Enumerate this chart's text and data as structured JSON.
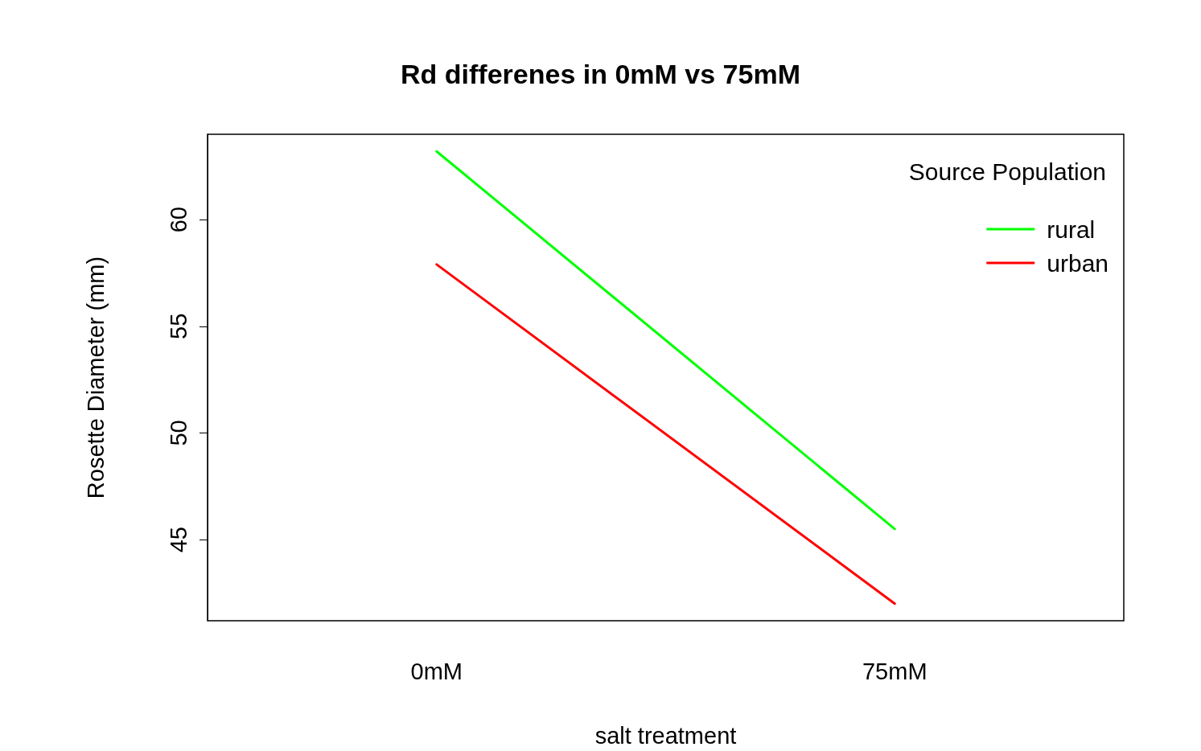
{
  "chart_data": {
    "type": "line",
    "title": "Rd differenes in 0mM vs 75mM",
    "xlabel": "salt treatment",
    "ylabel": "Rosette Diameter (mm)",
    "legend_title": "Source Population",
    "categories": [
      "0mM",
      "75mM"
    ],
    "series": [
      {
        "name": "rural",
        "color": "#00ff00",
        "values": [
          63.2,
          45.5
        ]
      },
      {
        "name": "urban",
        "color": "#ff0000",
        "values": [
          57.9,
          42.0
        ]
      }
    ],
    "ylim": [
      41.2,
      64
    ],
    "yticks": [
      45,
      50,
      55,
      60
    ],
    "grid": false,
    "legend": "top right",
    "marker": "none",
    "line_style": "solid"
  }
}
